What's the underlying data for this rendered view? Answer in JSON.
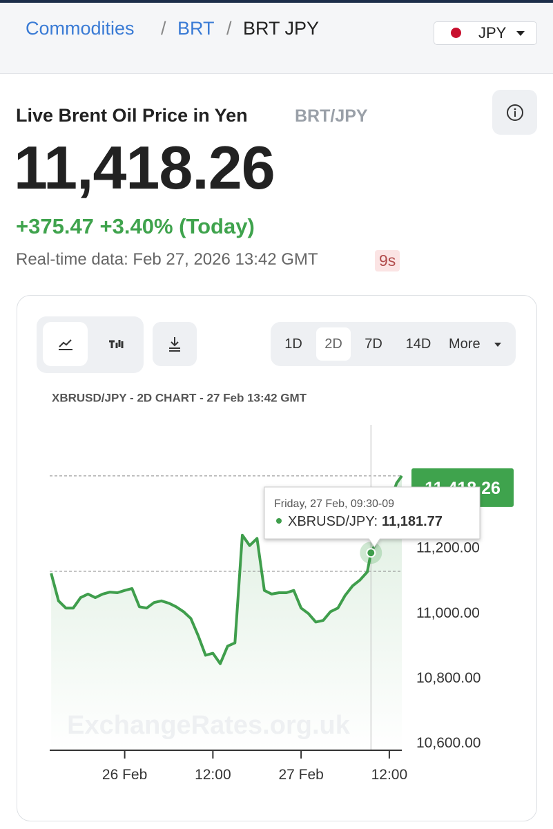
{
  "breadcrumb": [
    "Commodities",
    "BRT",
    "BRT JPY"
  ],
  "currency": "JPY",
  "heading": {
    "title": "Live Brent Oil Price in Yen",
    "symbol": "BRT/JPY"
  },
  "price": "11,418.26",
  "change": "+375.47 +3.40% (Today)",
  "realtime": "Real-time data: Feb 27, 2026 13:42 GMT",
  "age": "9s",
  "ranges": [
    "1D",
    "2D",
    "7D",
    "14D",
    "More"
  ],
  "chart_data": {
    "type": "line",
    "title": "XBRUSD/JPY - 2D CHART - 27 Feb 13:42 GMT",
    "watermark": "ExchangeRates.org.uk",
    "color": "#3f9e4c",
    "x": [
      "25 Feb 14:00",
      "25 Feb 15:00",
      "25 Feb 16:00",
      "25 Feb 17:00",
      "25 Feb 18:00",
      "25 Feb 19:00",
      "25 Feb 20:00",
      "25 Feb 21:00",
      "25 Feb 22:00",
      "25 Feb 23:00",
      "26 Feb 00:00",
      "26 Feb 01:00",
      "26 Feb 02:00",
      "26 Feb 03:00",
      "26 Feb 04:00",
      "26 Feb 05:00",
      "26 Feb 06:00",
      "26 Feb 07:00",
      "26 Feb 08:00",
      "26 Feb 09:00",
      "26 Feb 10:00",
      "26 Feb 11:00",
      "26 Feb 12:00",
      "26 Feb 13:00",
      "26 Feb 14:00",
      "26 Feb 15:00",
      "26 Feb 16:00",
      "26 Feb 17:00",
      "26 Feb 18:00",
      "26 Feb 19:00",
      "26 Feb 20:00",
      "26 Feb 21:00",
      "26 Feb 22:00",
      "26 Feb 23:00",
      "27 Feb 00:00",
      "27 Feb 01:00",
      "27 Feb 02:00",
      "27 Feb 03:00",
      "27 Feb 04:00",
      "27 Feb 05:00",
      "27 Feb 06:00",
      "27 Feb 07:00",
      "27 Feb 08:00",
      "27 Feb 09:00",
      "27 Feb 09:30",
      "27 Feb 10:00",
      "27 Feb 11:00",
      "27 Feb 12:00",
      "27 Feb 13:00",
      "27 Feb 13:42"
    ],
    "values": [
      11119,
      11034,
      11012,
      11012,
      11044,
      11055,
      11044,
      11055,
      11061,
      11059,
      11066,
      11072,
      11016,
      11012,
      11029,
      11034,
      11027,
      11016,
      11001,
      10980,
      10927,
      10867,
      10873,
      10841,
      10895,
      10905,
      11236,
      11204,
      11226,
      11066,
      11055,
      11059,
      11059,
      11066,
      11012,
      10995,
      10969,
      10974,
      11001,
      11012,
      11051,
      11080,
      11098,
      11123,
      11181.77,
      11204,
      11258,
      11332,
      11396,
      11418.26
    ],
    "xlim": [
      "25 Feb 13:48",
      "27 Feb 13:42"
    ],
    "xticks": [
      {
        "value": "26 Feb 00:00",
        "label": "26 Feb"
      },
      {
        "value": "26 Feb 12:00",
        "label": "12:00"
      },
      {
        "value": "27 Feb 00:00",
        "label": "27 Feb"
      },
      {
        "value": "27 Feb 12:00",
        "label": "12:00"
      }
    ],
    "ylim": [
      10575,
      11575
    ],
    "yticks": [
      {
        "value": 10600,
        "label": "10,600.00"
      },
      {
        "value": 10800,
        "label": "10,800.00"
      },
      {
        "value": 11000,
        "label": "11,000.00"
      },
      {
        "value": 11200,
        "label": "11,200.00"
      }
    ],
    "reference_lines": [
      11418.26,
      11125
    ],
    "last": {
      "value": 11418.26,
      "label": "11,418.26"
    },
    "tooltip": {
      "header": "Friday, 27 Feb, 09:30-09",
      "x": "27 Feb 09:30",
      "name": "XBRUSD/JPY:",
      "value": 11181.77,
      "value_label": "11,181.77"
    }
  }
}
